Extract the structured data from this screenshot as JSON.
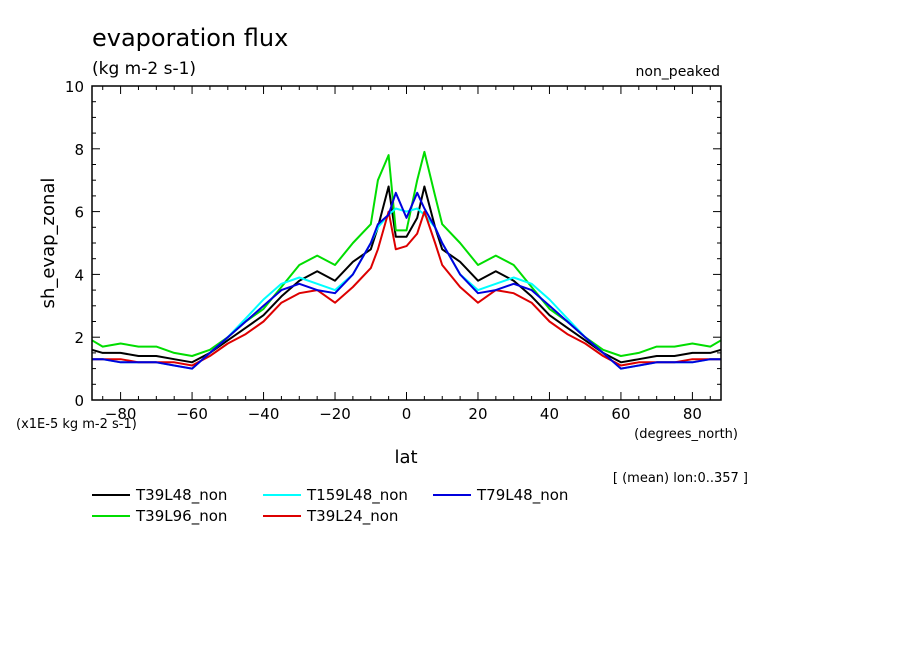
{
  "chart_data": {
    "type": "line",
    "title": "evaporation flux",
    "subtitle": "(kg m-2 s-1)",
    "annotation": "non_peaked",
    "ylabel": "sh_evap_zonal",
    "xlabel": "lat",
    "x_units": "(degrees_north)",
    "y_units": "(x1E-5 kg m-2 s-1)",
    "range_note": "[ (mean) lon:0..357 ]",
    "xlim": [
      -88,
      88
    ],
    "ylim": [
      0,
      10
    ],
    "xticks": [
      -80,
      -60,
      -40,
      -20,
      0,
      20,
      40,
      60,
      80
    ],
    "yticks": [
      0,
      2,
      4,
      6,
      8,
      10
    ],
    "x": [
      -88,
      -85,
      -80,
      -75,
      -70,
      -65,
      -60,
      -55,
      -50,
      -45,
      -40,
      -35,
      -30,
      -25,
      -20,
      -15,
      -10,
      -8,
      -5,
      -3,
      0,
      3,
      5,
      8,
      10,
      15,
      20,
      25,
      30,
      35,
      40,
      45,
      50,
      55,
      60,
      65,
      70,
      75,
      80,
      85,
      88
    ],
    "series": [
      {
        "name": "T39L48_non",
        "color": "#000000",
        "values": [
          1.6,
          1.5,
          1.5,
          1.4,
          1.4,
          1.3,
          1.2,
          1.5,
          1.9,
          2.3,
          2.7,
          3.3,
          3.8,
          4.1,
          3.8,
          4.4,
          4.8,
          5.5,
          6.8,
          5.2,
          5.2,
          5.8,
          6.8,
          5.5,
          4.8,
          4.4,
          3.8,
          4.1,
          3.8,
          3.3,
          2.7,
          2.3,
          1.9,
          1.5,
          1.2,
          1.3,
          1.4,
          1.4,
          1.5,
          1.5,
          1.6
        ]
      },
      {
        "name": "T39L96_non",
        "color": "#00dd00",
        "values": [
          1.9,
          1.7,
          1.8,
          1.7,
          1.7,
          1.5,
          1.4,
          1.6,
          2.0,
          2.5,
          2.9,
          3.6,
          4.3,
          4.6,
          4.3,
          5.0,
          5.6,
          7.0,
          7.8,
          5.4,
          5.4,
          7.0,
          7.9,
          6.5,
          5.6,
          5.0,
          4.3,
          4.6,
          4.3,
          3.6,
          2.9,
          2.5,
          2.0,
          1.6,
          1.4,
          1.5,
          1.7,
          1.7,
          1.8,
          1.7,
          1.9
        ]
      },
      {
        "name": "T159L48_non",
        "color": "#00ffff",
        "values": [
          1.3,
          1.3,
          1.2,
          1.2,
          1.2,
          1.1,
          1.0,
          1.5,
          2.0,
          2.6,
          3.2,
          3.7,
          3.9,
          3.7,
          3.5,
          4.0,
          5.0,
          5.5,
          5.9,
          6.1,
          6.0,
          6.1,
          5.9,
          5.5,
          5.0,
          4.0,
          3.5,
          3.7,
          3.9,
          3.7,
          3.2,
          2.6,
          2.0,
          1.5,
          1.0,
          1.1,
          1.2,
          1.2,
          1.2,
          1.3,
          1.3
        ]
      },
      {
        "name": "T39L24_non",
        "color": "#dd0000",
        "values": [
          1.3,
          1.3,
          1.3,
          1.2,
          1.2,
          1.2,
          1.1,
          1.4,
          1.8,
          2.1,
          2.5,
          3.1,
          3.4,
          3.5,
          3.1,
          3.6,
          4.2,
          4.8,
          6.0,
          4.8,
          4.9,
          5.3,
          6.0,
          5.0,
          4.3,
          3.6,
          3.1,
          3.5,
          3.4,
          3.1,
          2.5,
          2.1,
          1.8,
          1.4,
          1.1,
          1.2,
          1.2,
          1.2,
          1.3,
          1.3,
          1.3
        ]
      },
      {
        "name": "T79L48_non",
        "color": "#0000dd",
        "values": [
          1.3,
          1.3,
          1.2,
          1.2,
          1.2,
          1.1,
          1.0,
          1.5,
          2.0,
          2.5,
          3.0,
          3.5,
          3.7,
          3.5,
          3.4,
          4.0,
          5.0,
          5.6,
          5.9,
          6.6,
          5.8,
          6.6,
          6.1,
          5.5,
          5.0,
          4.0,
          3.4,
          3.5,
          3.7,
          3.5,
          3.0,
          2.5,
          2.0,
          1.5,
          1.0,
          1.1,
          1.2,
          1.2,
          1.2,
          1.3,
          1.3
        ]
      }
    ]
  }
}
